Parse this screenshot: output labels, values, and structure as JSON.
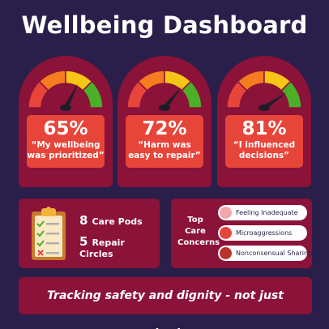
{
  "title": "Wellbeing Dashboard",
  "gauges": [
    {
      "percent": "65%",
      "quote": "“My wellbeing was prioritized”",
      "needle_level": 0.65
    },
    {
      "percent": "72%",
      "quote": "“Harm was easy to repair”",
      "needle_level": 0.72
    },
    {
      "percent": "81%",
      "quote": "“I influenced decisions”",
      "needle_level": 0.81
    }
  ],
  "gauge_colors": [
    "#e8453a",
    "#f57c1f",
    "#f5c518",
    "#4caf28"
  ],
  "pods": {
    "icon": "clipboard-checklist-icon",
    "items": [
      {
        "number": "8",
        "label": "Care Pods"
      },
      {
        "number": "5",
        "label": "Repair Circles"
      }
    ]
  },
  "concerns": {
    "label": "Top Care Concerns",
    "items": [
      {
        "label": "Feeling Inadequate",
        "color": "#f4a6ad"
      },
      {
        "label": "Microaggressions",
        "color": "#e8453a"
      },
      {
        "label": "Nonconsensual Sharing",
        "color": "#b8322a"
      }
    ]
  },
  "footer": "Tracking safety and dignity - not just outputs."
}
